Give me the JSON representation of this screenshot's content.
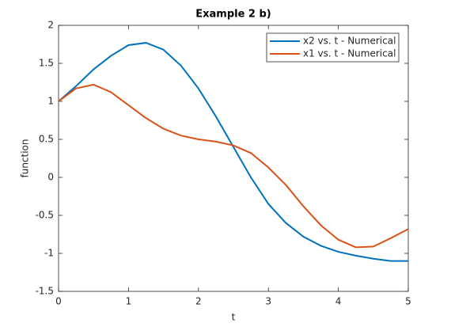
{
  "chart_data": {
    "type": "line",
    "title": "Example 2 b)",
    "xlabel": "t",
    "ylabel": "function",
    "x": [
      0,
      0.25,
      0.5,
      0.75,
      1,
      1.25,
      1.5,
      1.75,
      2,
      2.25,
      2.5,
      2.75,
      3,
      3.25,
      3.5,
      3.75,
      4,
      4.25,
      4.5,
      4.75,
      5
    ],
    "series": [
      {
        "name": "x2 vs. t - Numerical",
        "color": "#0072BD",
        "values": [
          1.0,
          1.2,
          1.42,
          1.6,
          1.74,
          1.77,
          1.68,
          1.47,
          1.17,
          0.8,
          0.4,
          0.0,
          -0.35,
          -0.6,
          -0.78,
          -0.9,
          -0.98,
          -1.03,
          -1.07,
          -1.1,
          -1.1
        ]
      },
      {
        "name": "x1 vs. t - Numerical",
        "color": "#D95319",
        "values": [
          1.0,
          1.17,
          1.22,
          1.12,
          0.95,
          0.78,
          0.64,
          0.55,
          0.5,
          0.47,
          0.42,
          0.32,
          0.13,
          -0.1,
          -0.38,
          -0.63,
          -0.82,
          -0.92,
          -0.91,
          -0.8,
          -0.68
        ]
      }
    ],
    "xlim": [
      0,
      5
    ],
    "xticks": [
      0,
      1,
      2,
      3,
      4,
      5
    ],
    "ylim": [
      -1.5,
      2
    ],
    "yticks": [
      -1.5,
      -1,
      -0.5,
      0,
      0.5,
      1,
      1.5,
      2
    ],
    "legend": "northeast"
  }
}
